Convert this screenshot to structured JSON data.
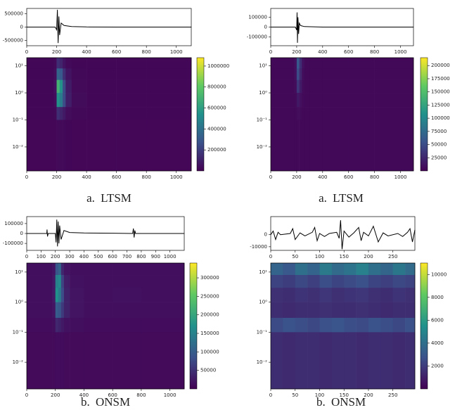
{
  "chart_data": [
    {
      "type": "line",
      "color": "#000000",
      "x": [
        0,
        100,
        190,
        200,
        205,
        210,
        215,
        220,
        230,
        250,
        300,
        400,
        600,
        800,
        1100
      ],
      "values": [
        0,
        0,
        0,
        -100000,
        650000,
        -600000,
        400000,
        -300000,
        150000,
        60000,
        20000,
        5000,
        0,
        0,
        0
      ],
      "xlim": [
        0,
        1100
      ],
      "xticks": [
        0,
        200,
        400,
        600,
        800,
        1000
      ],
      "ylim": [
        -700000,
        700000
      ],
      "yticks": [
        -500000,
        0,
        500000
      ]
    },
    {
      "type": "heatmap",
      "caption": "a. LTSM",
      "xbins": [
        0,
        180,
        200,
        220,
        240,
        260,
        300,
        400,
        600,
        800,
        1100
      ],
      "ybins": [
        20,
        8,
        3,
        1,
        0.3,
        0.1,
        0.0013
      ],
      "values": [
        [
          20000,
          30000,
          150000,
          120000,
          60000,
          30000,
          20000,
          20000,
          20000,
          20000
        ],
        [
          20000,
          40000,
          350000,
          300000,
          150000,
          60000,
          25000,
          20000,
          20000,
          20000
        ],
        [
          20000,
          50000,
          700000,
          550000,
          250000,
          90000,
          30000,
          20000,
          20000,
          20000
        ],
        [
          20000,
          40000,
          550000,
          450000,
          250000,
          100000,
          35000,
          20000,
          20000,
          20000
        ],
        [
          20000,
          25000,
          150000,
          120000,
          80000,
          40000,
          25000,
          20000,
          20000,
          20000
        ],
        [
          15000,
          15000,
          30000,
          30000,
          25000,
          20000,
          15000,
          15000,
          15000,
          15000
        ]
      ],
      "xlim": [
        0,
        1100
      ],
      "xticks": [
        0,
        200,
        400,
        600,
        800,
        1000
      ],
      "ylim": [
        0.0013,
        20
      ],
      "log_y": true,
      "yticks": [
        {
          "value": 0.01,
          "label": "10⁻²"
        },
        {
          "value": 0.1,
          "label": "10⁻¹"
        },
        {
          "value": 1,
          "label": "10⁰"
        },
        {
          "value": 10,
          "label": "10¹"
        }
      ],
      "clim": [
        0,
        1080000
      ],
      "cticks": [
        200000,
        400000,
        600000,
        800000,
        1000000
      ]
    },
    {
      "type": "line",
      "color": "#000000",
      "x": [
        0,
        100,
        190,
        200,
        203,
        206,
        210,
        215,
        220,
        230,
        260,
        400,
        1100
      ],
      "values": [
        0,
        0,
        0,
        -30000,
        150000,
        -160000,
        100000,
        -70000,
        40000,
        15000,
        5000,
        0,
        0
      ],
      "xlim": [
        0,
        1100
      ],
      "xticks": [
        0,
        200,
        400,
        600,
        800,
        1000
      ],
      "ylim": [
        -190000,
        190000
      ],
      "yticks": [
        -100000,
        0,
        100000
      ]
    },
    {
      "type": "heatmap",
      "caption": "a. LTSM",
      "xbins": [
        0,
        180,
        200,
        220,
        240,
        260,
        300,
        400,
        600,
        800,
        1100
      ],
      "ybins": [
        20,
        8,
        3,
        1,
        0.3,
        0.1,
        0.0013
      ],
      "values": [
        [
          5000,
          10000,
          60000,
          30000,
          10000,
          5000,
          5000,
          5000,
          5000,
          5000
        ],
        [
          5000,
          10000,
          50000,
          25000,
          8000,
          5000,
          5000,
          5000,
          5000,
          5000
        ],
        [
          5000,
          8000,
          35000,
          18000,
          7000,
          5000,
          5000,
          5000,
          5000,
          5000
        ],
        [
          5000,
          6000,
          15000,
          10000,
          6000,
          5000,
          5000,
          5000,
          5000,
          5000
        ],
        [
          5000,
          5000,
          8000,
          7000,
          5000,
          5000,
          5000,
          5000,
          5000,
          5000
        ],
        [
          5000,
          5000,
          5000,
          5000,
          5000,
          5000,
          5000,
          5000,
          5000,
          5000
        ]
      ],
      "xlim": [
        0,
        1100
      ],
      "xticks": [
        0,
        200,
        400,
        600,
        800,
        1000
      ],
      "ylim": [
        0.0013,
        20
      ],
      "log_y": true,
      "yticks": [
        {
          "value": 0.01,
          "label": "10⁻²"
        },
        {
          "value": 0.1,
          "label": "10⁻¹"
        },
        {
          "value": 1,
          "label": "10⁰"
        },
        {
          "value": 10,
          "label": "10¹"
        }
      ],
      "clim": [
        0,
        215000
      ],
      "cticks": [
        25000,
        50000,
        75000,
        100000,
        125000,
        150000,
        175000,
        200000
      ]
    },
    {
      "type": "line",
      "color": "#000000",
      "x": [
        0,
        100,
        140,
        142,
        145,
        150,
        200,
        205,
        210,
        215,
        220,
        225,
        230,
        240,
        260,
        300,
        400,
        600,
        740,
        745,
        750,
        755,
        760,
        800,
        1100
      ],
      "values": [
        0,
        0,
        0,
        40000,
        -30000,
        0,
        0,
        -90000,
        140000,
        -130000,
        120000,
        -100000,
        80000,
        -60000,
        30000,
        10000,
        5000,
        3000,
        0,
        50000,
        -40000,
        30000,
        0,
        0,
        0
      ],
      "xlim": [
        0,
        1100
      ],
      "xticks": [
        0,
        100,
        200,
        300,
        400,
        500,
        600,
        700,
        800,
        900,
        1000
      ],
      "ylim": [
        -170000,
        170000
      ],
      "yticks": [
        -100000,
        0,
        100000
      ]
    },
    {
      "type": "heatmap",
      "caption": "b. ONSM",
      "xbins": [
        0,
        180,
        200,
        220,
        240,
        260,
        300,
        400,
        600,
        800,
        1100
      ],
      "ybins": [
        20,
        8,
        3,
        1,
        0.3,
        0.1,
        0.0013
      ],
      "values": [
        [
          15000,
          20000,
          90000,
          110000,
          40000,
          20000,
          15000,
          15000,
          15000,
          15000
        ],
        [
          15000,
          25000,
          150000,
          160000,
          70000,
          30000,
          18000,
          15000,
          15000,
          15000
        ],
        [
          15000,
          25000,
          170000,
          140000,
          80000,
          35000,
          20000,
          15000,
          18000,
          15000
        ],
        [
          15000,
          20000,
          100000,
          90000,
          60000,
          35000,
          20000,
          15000,
          15000,
          15000
        ],
        [
          12000,
          15000,
          40000,
          35000,
          25000,
          18000,
          15000,
          12000,
          12000,
          12000
        ],
        [
          10000,
          10000,
          12000,
          12000,
          12000,
          10000,
          10000,
          10000,
          10000,
          10000
        ]
      ],
      "xlim": [
        0,
        1100
      ],
      "xticks": [
        0,
        200,
        400,
        600,
        800,
        1000
      ],
      "ylim": [
        0.0013,
        20
      ],
      "log_y": true,
      "yticks": [
        {
          "value": 0.01,
          "label": "10⁻²"
        },
        {
          "value": 0.1,
          "label": "10⁻¹"
        },
        {
          "value": 1,
          "label": "10⁰"
        },
        {
          "value": 10,
          "label": "10¹"
        }
      ],
      "clim": [
        0,
        340000
      ],
      "cticks": [
        50000,
        100000,
        150000,
        200000,
        250000,
        300000
      ]
    },
    {
      "type": "line",
      "color": "#000000",
      "x": [
        0,
        5,
        10,
        15,
        20,
        40,
        45,
        50,
        60,
        70,
        85,
        90,
        95,
        100,
        110,
        120,
        135,
        140,
        143,
        146,
        150,
        160,
        170,
        180,
        185,
        190,
        200,
        210,
        220,
        230,
        240,
        260,
        270,
        280,
        285,
        290,
        295
      ],
      "values": [
        0,
        3000,
        -4000,
        2000,
        0,
        1000,
        5000,
        -4000,
        1500,
        -1000,
        2000,
        6000,
        -5000,
        1000,
        -1500,
        1000,
        2000,
        -3000,
        12000,
        -12000,
        3000,
        -2000,
        1500,
        6000,
        -5000,
        2000,
        -1000,
        7000,
        -6000,
        1500,
        -1000,
        1000,
        -1500,
        2000,
        5000,
        -6000,
        4000
      ],
      "xlim": [
        0,
        295
      ],
      "xticks": [
        0,
        50,
        100,
        150,
        200,
        250
      ],
      "ylim": [
        -13000,
        15000
      ],
      "yticks": [
        -10000,
        0
      ]
    },
    {
      "type": "heatmap",
      "caption": "b. ONSM",
      "xbins": [
        0,
        25,
        50,
        75,
        100,
        125,
        150,
        175,
        200,
        225,
        250,
        275,
        295
      ],
      "ybins": [
        20,
        8,
        3,
        1,
        0.3,
        0.1,
        0.0013
      ],
      "values": [
        [
          3500,
          3000,
          4000,
          3500,
          4500,
          3800,
          4200,
          4800,
          4000,
          3600,
          4300,
          3800
        ],
        [
          2200,
          2000,
          2400,
          2100,
          2600,
          2300,
          2500,
          2700,
          2300,
          2100,
          2400,
          2200
        ],
        [
          1600,
          1500,
          1700,
          1600,
          1800,
          1600,
          1700,
          1800,
          1600,
          1500,
          1700,
          1600
        ],
        [
          1500,
          1400,
          1500,
          1500,
          1600,
          1500,
          1500,
          1600,
          1500,
          1400,
          1500,
          1500
        ],
        [
          2500,
          2800,
          2600,
          2400,
          2700,
          2900,
          2600,
          2500,
          2800,
          2600,
          2400,
          2700
        ],
        [
          1500,
          1400,
          1500,
          1500,
          1400,
          1500,
          1500,
          1400,
          1500,
          1500,
          1400,
          1500
        ]
      ],
      "xlim": [
        0,
        295
      ],
      "xticks": [
        0,
        50,
        100,
        150,
        200,
        250
      ],
      "ylim": [
        0.0013,
        20
      ],
      "log_y": true,
      "yticks": [
        {
          "value": 0.01,
          "label": "10⁻²"
        },
        {
          "value": 0.1,
          "label": "10⁻¹"
        },
        {
          "value": 1,
          "label": "10⁰"
        },
        {
          "value": 10,
          "label": "10¹"
        }
      ],
      "clim": [
        0,
        11000
      ],
      "cticks": [
        2000,
        4000,
        6000,
        8000,
        10000
      ]
    }
  ]
}
